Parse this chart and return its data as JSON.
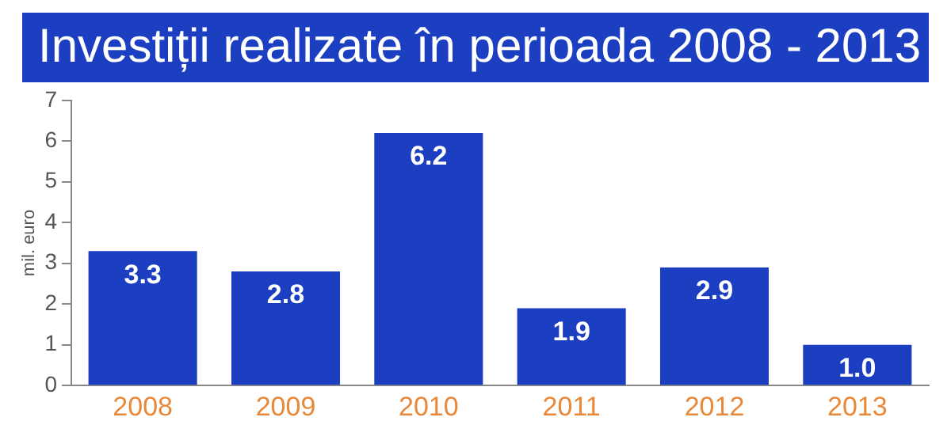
{
  "chart_data": {
    "type": "bar",
    "title": "Investiții realizate în perioada 2008 - 2013",
    "ylabel": "mil. euro",
    "categories": [
      "2008",
      "2009",
      "2010",
      "2011",
      "2012",
      "2013"
    ],
    "values": [
      3.3,
      2.8,
      6.2,
      1.9,
      2.9,
      1.0
    ],
    "value_labels": [
      "3.3",
      "2.8",
      "6.2",
      "1.9",
      "2.9",
      "1.0"
    ],
    "color": "#1c3fc2",
    "ylim": [
      0,
      7
    ],
    "yticks": [
      0,
      1,
      2,
      3,
      4,
      5,
      6,
      7
    ],
    "grid": false,
    "legend": false
  }
}
